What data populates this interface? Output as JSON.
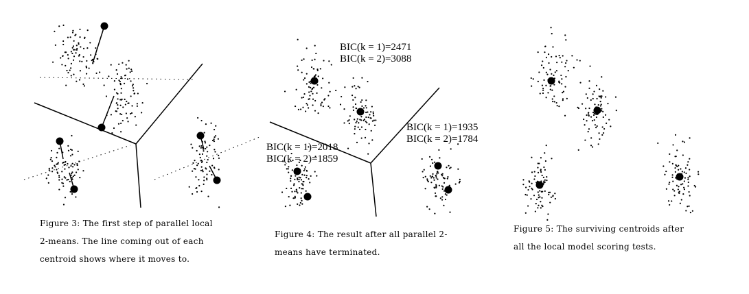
{
  "figures": [
    {
      "caption": [
        "Figure 3: The first step of parallel local",
        "2-means.  The line coming out of each",
        "centroid shows where it moves to."
      ]
    },
    {
      "caption": [
        "Figure 4: The result after all parallel 2-",
        "means have terminated."
      ],
      "annotations": [
        [
          "BIC(k = 1)=2471",
          "BIC(k = 2)=3088"
        ],
        [
          "BIC(k = 1)=1935",
          "BIC(k = 2)=1784"
        ],
        [
          "BIC(k = 1)=2018",
          "BIC(k = 2)=1859"
        ]
      ]
    },
    {
      "caption": [
        "Figure 5: The surviving centroids after",
        "all the local model scoring tests."
      ]
    }
  ]
}
